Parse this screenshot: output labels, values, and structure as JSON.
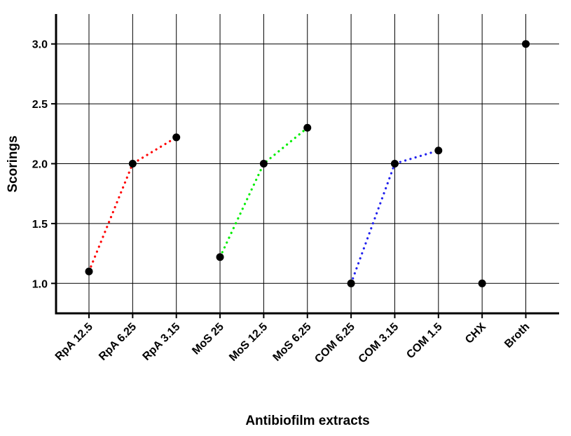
{
  "chart_data": {
    "type": "scatter",
    "title": "",
    "xlabel": "Antibiofilm extracts",
    "ylabel": "Scorings",
    "categories": [
      "RpA 12.5",
      "RpA 6.25",
      "RpA 3.15",
      "MoS 25",
      "MoS 12.5",
      "MoS 6.25",
      "COM 6.25",
      "COM 3.15",
      "COM 1.5",
      "CHX",
      "Broth"
    ],
    "values": [
      1.1,
      2.0,
      2.22,
      1.22,
      2.0,
      2.3,
      1.0,
      2.0,
      2.11,
      1.0,
      3.0
    ],
    "ylim": [
      0.75,
      3.25
    ],
    "yticks": [
      1.0,
      1.5,
      2.0,
      2.5,
      3.0
    ],
    "yticks_labels": [
      "1.0",
      "1.5",
      "2.0",
      "2.5",
      "3.0"
    ],
    "grid": true,
    "connectors": [
      {
        "from": 0,
        "to": 2,
        "color": "#ff0000",
        "style": "dotted"
      },
      {
        "from": 3,
        "to": 5,
        "color": "#00ee00",
        "style": "dotted"
      },
      {
        "from": 6,
        "to": 8,
        "color": "#2222ee",
        "style": "dotted"
      }
    ]
  }
}
